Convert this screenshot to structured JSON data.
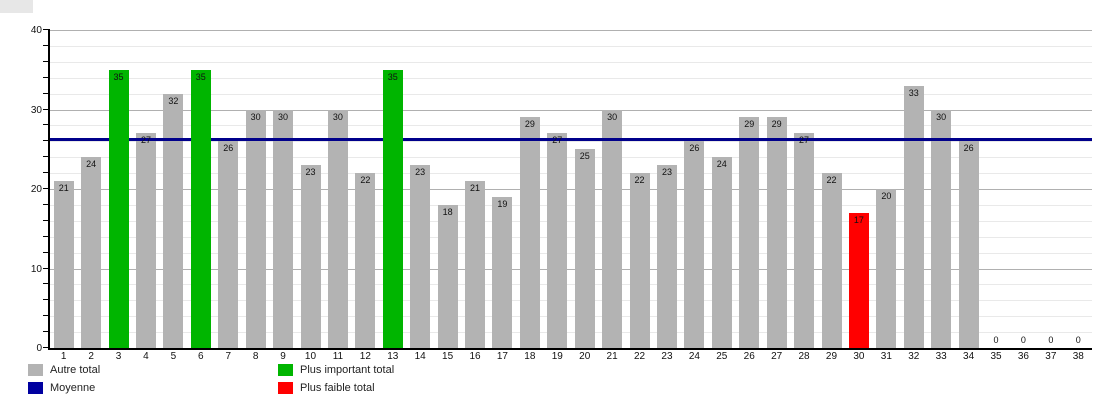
{
  "chart_data": {
    "type": "bar",
    "title": "",
    "xlabel": "",
    "ylabel": "",
    "ylim": [
      0,
      40
    ],
    "ytick_major": [
      0,
      10,
      20,
      30,
      40
    ],
    "ytick_minor_step": 2,
    "grid": true,
    "legend_position": "bottom",
    "categories": [
      "1",
      "2",
      "3",
      "4",
      "5",
      "6",
      "7",
      "8",
      "9",
      "10",
      "11",
      "12",
      "13",
      "14",
      "15",
      "16",
      "17",
      "18",
      "19",
      "20",
      "21",
      "22",
      "23",
      "24",
      "25",
      "26",
      "27",
      "28",
      "29",
      "30",
      "31",
      "32",
      "33",
      "34",
      "35",
      "36",
      "37",
      "38"
    ],
    "values": [
      21,
      24,
      35,
      27,
      32,
      35,
      26,
      30,
      30,
      23,
      30,
      22,
      35,
      23,
      18,
      21,
      19,
      29,
      27,
      25,
      30,
      22,
      23,
      26,
      24,
      29,
      29,
      27,
      22,
      17,
      20,
      33,
      30,
      26,
      0,
      0,
      0,
      0
    ],
    "point_types": [
      "autre",
      "autre",
      "important",
      "autre",
      "autre",
      "important",
      "autre",
      "autre",
      "autre",
      "autre",
      "autre",
      "autre",
      "important",
      "autre",
      "autre",
      "autre",
      "autre",
      "autre",
      "autre",
      "autre",
      "autre",
      "autre",
      "autre",
      "autre",
      "autre",
      "autre",
      "autre",
      "autre",
      "autre",
      "faible",
      "autre",
      "autre",
      "autre",
      "autre",
      "autre",
      "autre",
      "autre",
      "autre"
    ],
    "moyenne": 26.2,
    "colors": {
      "autre": "#b3b3b3",
      "important": "#00b500",
      "faible": "#ff0000",
      "moyenne": "#00008b"
    }
  },
  "legend": {
    "items": [
      {
        "key": "autre",
        "label": "Autre total",
        "color": "#b3b3b3"
      },
      {
        "key": "moyenne",
        "label": "Moyenne",
        "color": "#0000a0"
      },
      {
        "key": "important",
        "label": "Plus important total",
        "color": "#00b500"
      },
      {
        "key": "faible",
        "label": "Plus faible total",
        "color": "#ff0000"
      }
    ]
  }
}
